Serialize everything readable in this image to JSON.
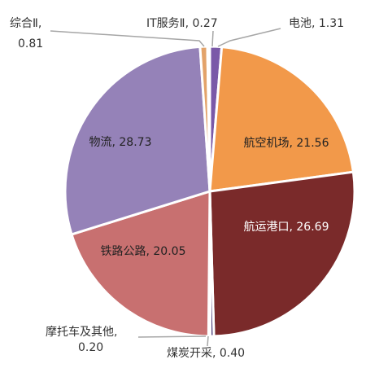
{
  "chart_data": {
    "type": "pie",
    "title": "",
    "series": [
      {
        "label": "电池",
        "value": 1.31,
        "color": "#7a59a8",
        "display": "电池, 1.31"
      },
      {
        "label": "航空机场",
        "value": 21.56,
        "color": "#f2994a",
        "display": "航空机场, 21.56"
      },
      {
        "label": "航运港口",
        "value": 26.69,
        "color": "#7a2a2a",
        "display": "航运港口, 26.69"
      },
      {
        "label": "煤炭开采",
        "value": 0.4,
        "color": "#4a3c78",
        "display": "煤炭开采, 0.40"
      },
      {
        "label": "摩托车及其他",
        "value": 0.2,
        "color": "#a8a8a8",
        "display": [
          "摩托车及其他,",
          "0.20"
        ]
      },
      {
        "label": "铁路公路",
        "value": 20.05,
        "color": "#c87070",
        "display": "铁路公路, 20.05"
      },
      {
        "label": "物流",
        "value": 28.73,
        "color": "#9582b8",
        "display": "物流, 28.73"
      },
      {
        "label": "综合Ⅱ",
        "value": 0.81,
        "color": "#e3a36a",
        "display": [
          "综合Ⅱ,",
          "0.81"
        ]
      },
      {
        "label": "IT服务Ⅱ",
        "value": 0.27,
        "color": "#d9a64e",
        "display": "IT服务Ⅱ, 0.27"
      }
    ]
  }
}
